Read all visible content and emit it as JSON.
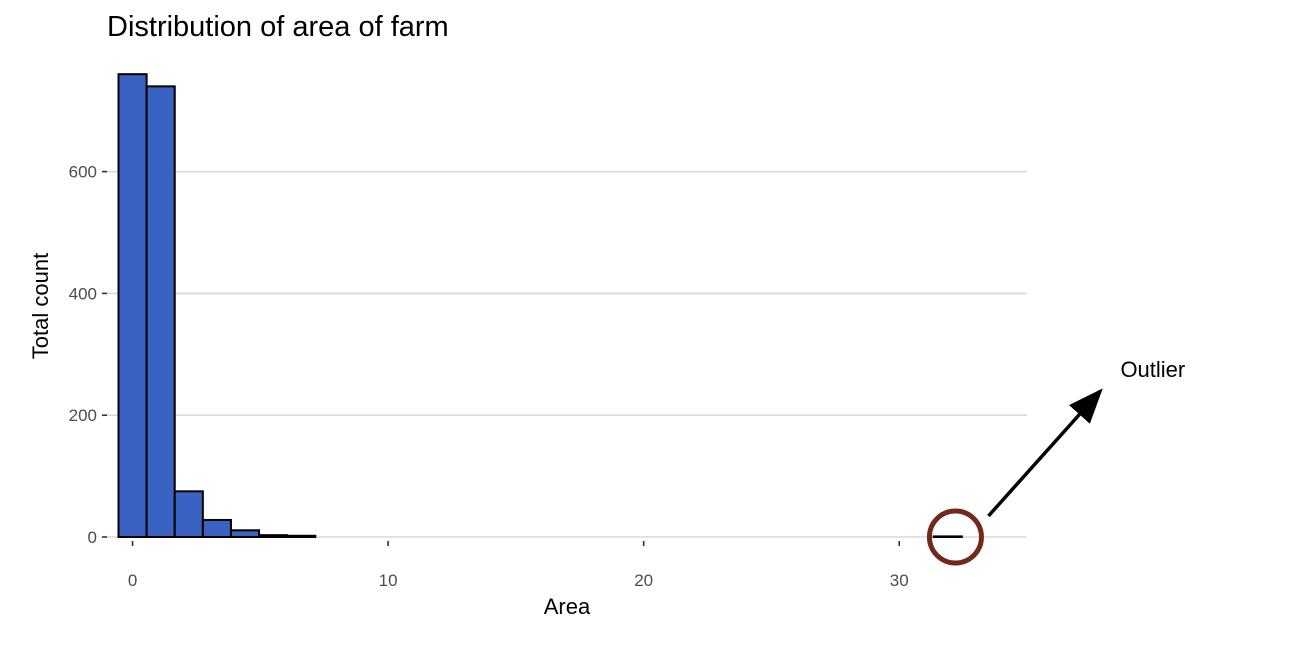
{
  "chart_data": {
    "type": "bar",
    "title": "Distribution of area of farm",
    "xlabel": "Area",
    "ylabel": "Total count",
    "xlim": [
      -1,
      35
    ],
    "ylim": [
      0,
      780
    ],
    "xticks": [
      0,
      10,
      20,
      30
    ],
    "yticks": [
      0,
      200,
      400,
      600
    ],
    "grid": "horizontal",
    "bins": [
      {
        "x0": -0.55,
        "x1": 0.55,
        "count": 760
      },
      {
        "x0": 0.55,
        "x1": 1.65,
        "count": 740
      },
      {
        "x0": 1.65,
        "x1": 2.75,
        "count": 75
      },
      {
        "x0": 2.75,
        "x1": 3.85,
        "count": 28
      },
      {
        "x0": 3.85,
        "x1": 4.95,
        "count": 11
      },
      {
        "x0": 4.95,
        "x1": 6.05,
        "count": 3
      },
      {
        "x0": 6.05,
        "x1": 7.15,
        "count": 2
      },
      {
        "x0": 7.15,
        "x1": 8.25,
        "count": 0
      },
      {
        "x0": 8.25,
        "x1": 9.35,
        "count": 0
      },
      {
        "x0": 9.35,
        "x1": 10.45,
        "count": 0
      },
      {
        "x0": 10.45,
        "x1": 11.55,
        "count": 0
      },
      {
        "x0": 11.55,
        "x1": 12.65,
        "count": 0
      },
      {
        "x0": 12.65,
        "x1": 13.75,
        "count": 0
      },
      {
        "x0": 13.75,
        "x1": 14.85,
        "count": 0
      },
      {
        "x0": 14.85,
        "x1": 15.95,
        "count": 0
      },
      {
        "x0": 15.95,
        "x1": 17.05,
        "count": 0
      },
      {
        "x0": 17.05,
        "x1": 18.15,
        "count": 0
      },
      {
        "x0": 18.15,
        "x1": 19.25,
        "count": 0
      },
      {
        "x0": 19.25,
        "x1": 20.35,
        "count": 0
      },
      {
        "x0": 20.35,
        "x1": 21.45,
        "count": 0
      },
      {
        "x0": 21.45,
        "x1": 22.55,
        "count": 0
      },
      {
        "x0": 22.55,
        "x1": 23.65,
        "count": 0
      },
      {
        "x0": 23.65,
        "x1": 24.75,
        "count": 0
      },
      {
        "x0": 24.75,
        "x1": 25.85,
        "count": 0
      },
      {
        "x0": 25.85,
        "x1": 26.95,
        "count": 0
      },
      {
        "x0": 26.95,
        "x1": 28.05,
        "count": 0
      },
      {
        "x0": 28.05,
        "x1": 29.15,
        "count": 0
      },
      {
        "x0": 29.15,
        "x1": 30.25,
        "count": 0
      },
      {
        "x0": 30.25,
        "x1": 31.35,
        "count": 0
      },
      {
        "x0": 31.35,
        "x1": 32.45,
        "count": 1
      },
      {
        "x0": 32.45,
        "x1": 33.55,
        "count": 0
      }
    ],
    "annotations": [
      {
        "text": "Outlier",
        "x": 32.2,
        "y": 0,
        "marker": "circle"
      }
    ],
    "colors": {
      "bar_fill": "#3a62c2",
      "bar_stroke": "#000000",
      "grid": "#d9d9d9",
      "circle": "#73291a",
      "arrow": "#000000"
    }
  }
}
